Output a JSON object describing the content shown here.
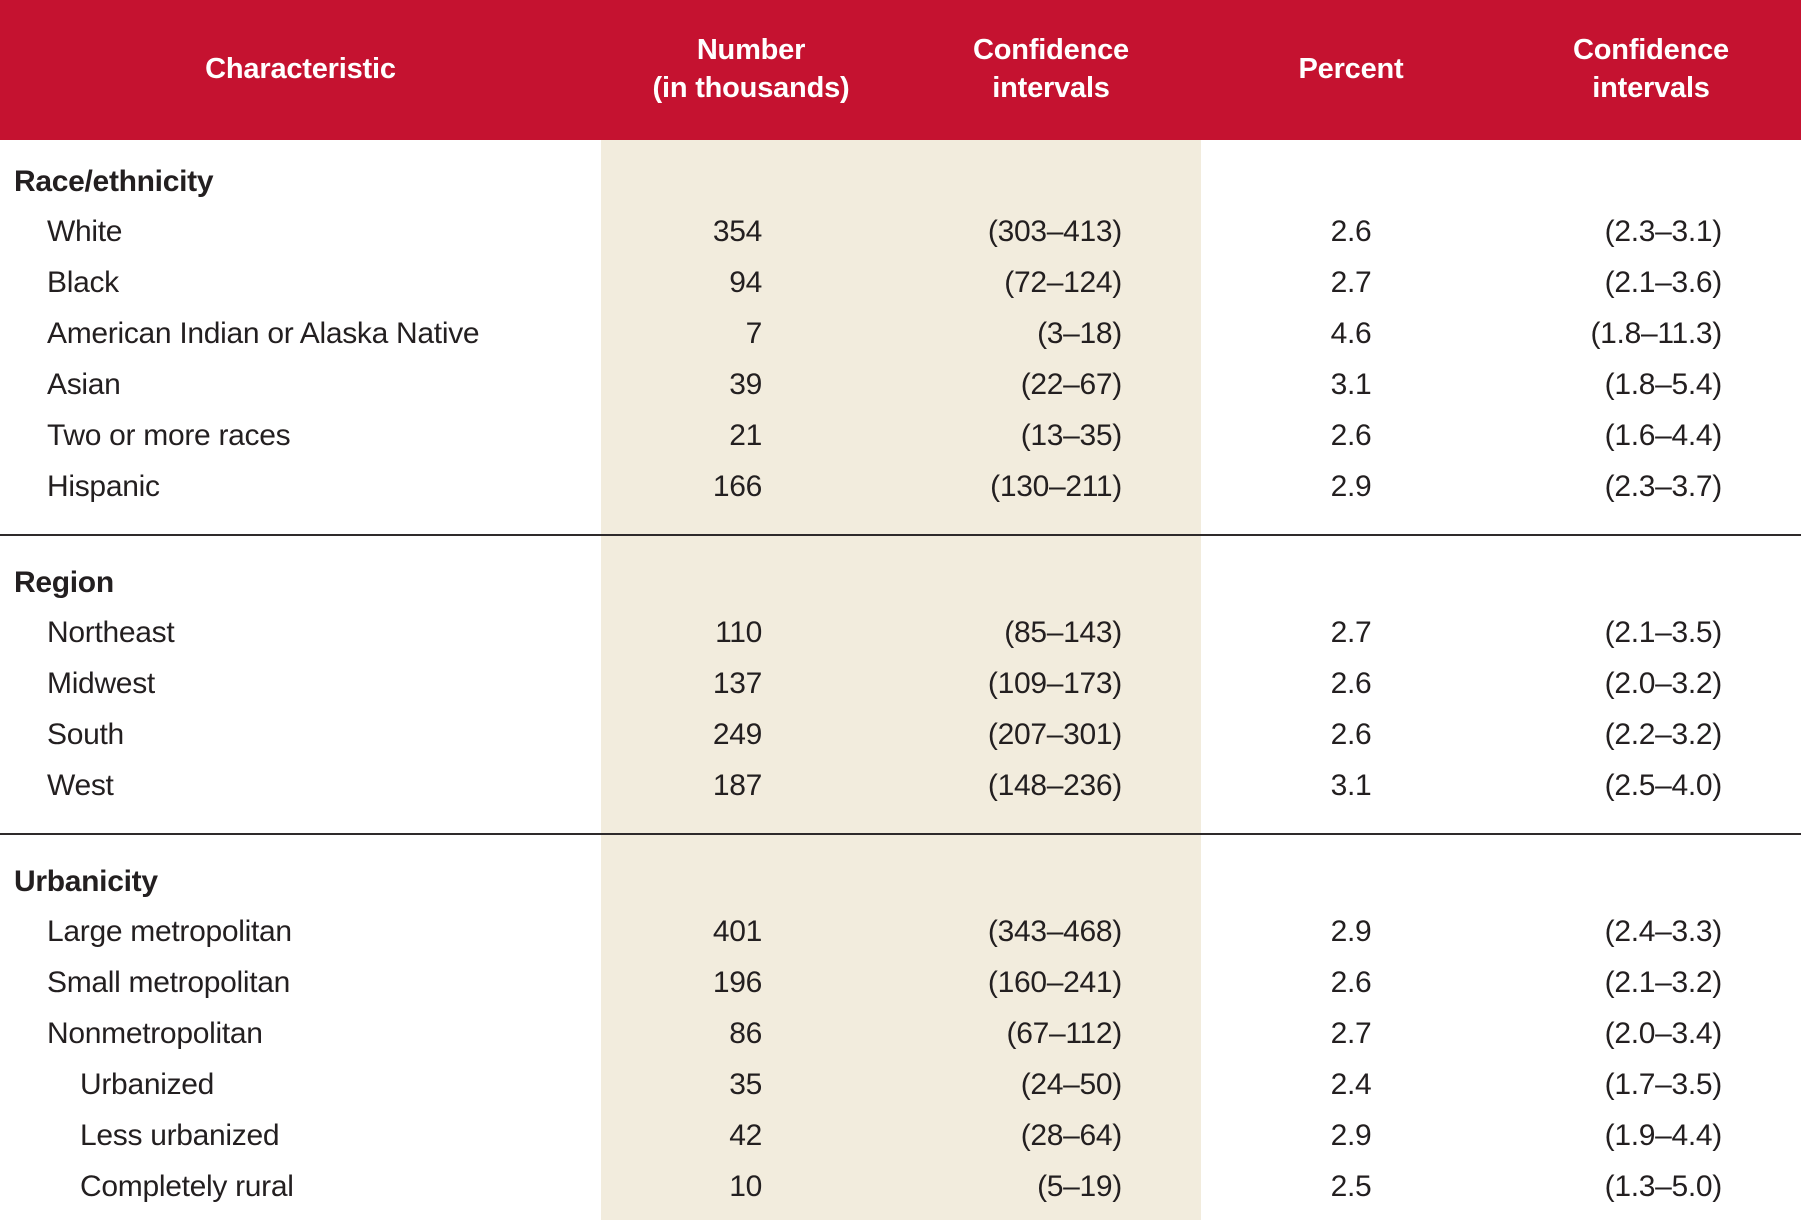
{
  "header": {
    "characteristic": "Characteristic",
    "number": "Number\n(in thousands)",
    "ci1": "Confidence\nintervals",
    "percent": "Percent",
    "ci2": "Confidence\nintervals"
  },
  "sections": [
    {
      "label": "Race/ethnicity",
      "rows": [
        {
          "label": "White",
          "indent": 1,
          "number": "354",
          "ci1": "(303–413)",
          "percent": "2.6",
          "ci2": "(2.3–3.1)"
        },
        {
          "label": "Black",
          "indent": 1,
          "number": "94",
          "ci1": "(72–124)",
          "percent": "2.7",
          "ci2": "(2.1–3.6)"
        },
        {
          "label": "American Indian or Alaska Native",
          "indent": 1,
          "number": "7",
          "ci1": "(3–18)",
          "percent": "4.6",
          "ci2": "(1.8–11.3)"
        },
        {
          "label": "Asian",
          "indent": 1,
          "number": "39",
          "ci1": "(22–67)",
          "percent": "3.1",
          "ci2": "(1.8–5.4)"
        },
        {
          "label": "Two or more races",
          "indent": 1,
          "number": "21",
          "ci1": "(13–35)",
          "percent": "2.6",
          "ci2": "(1.6–4.4)"
        },
        {
          "label": "Hispanic",
          "indent": 1,
          "number": "166",
          "ci1": "(130–211)",
          "percent": "2.9",
          "ci2": "(2.3–3.7)"
        }
      ]
    },
    {
      "label": "Region",
      "rows": [
        {
          "label": "Northeast",
          "indent": 1,
          "number": "110",
          "ci1": "(85–143)",
          "percent": "2.7",
          "ci2": "(2.1–3.5)"
        },
        {
          "label": "Midwest",
          "indent": 1,
          "number": "137",
          "ci1": "(109–173)",
          "percent": "2.6",
          "ci2": "(2.0–3.2)"
        },
        {
          "label": "South",
          "indent": 1,
          "number": "249",
          "ci1": "(207–301)",
          "percent": "2.6",
          "ci2": "(2.2–3.2)"
        },
        {
          "label": "West",
          "indent": 1,
          "number": "187",
          "ci1": "(148–236)",
          "percent": "3.1",
          "ci2": "(2.5–4.0)"
        }
      ]
    },
    {
      "label": "Urbanicity",
      "rows": [
        {
          "label": "Large metropolitan",
          "indent": 1,
          "number": "401",
          "ci1": "(343–468)",
          "percent": "2.9",
          "ci2": "(2.4–3.3)"
        },
        {
          "label": "Small metropolitan",
          "indent": 1,
          "number": "196",
          "ci1": "(160–241)",
          "percent": "2.6",
          "ci2": "(2.1–3.2)"
        },
        {
          "label": "Nonmetropolitan",
          "indent": 1,
          "number": "86",
          "ci1": "(67–112)",
          "percent": "2.7",
          "ci2": "(2.0–3.4)"
        },
        {
          "label": "Urbanized",
          "indent": 2,
          "number": "35",
          "ci1": "(24–50)",
          "percent": "2.4",
          "ci2": "(1.7–3.5)"
        },
        {
          "label": "Less urbanized",
          "indent": 2,
          "number": "42",
          "ci1": "(28–64)",
          "percent": "2.9",
          "ci2": "(1.9–4.4)"
        },
        {
          "label": "Completely rural",
          "indent": 2,
          "number": "10",
          "ci1": "(5–19)",
          "percent": "2.5",
          "ci2": "(1.3–5.0)"
        }
      ]
    }
  ],
  "colors": {
    "header_bg": "#c51230",
    "header_text": "#ffffff",
    "band_bg": "#f2ecdd",
    "body_text": "#231f20",
    "divider": "#2e2a2b"
  }
}
